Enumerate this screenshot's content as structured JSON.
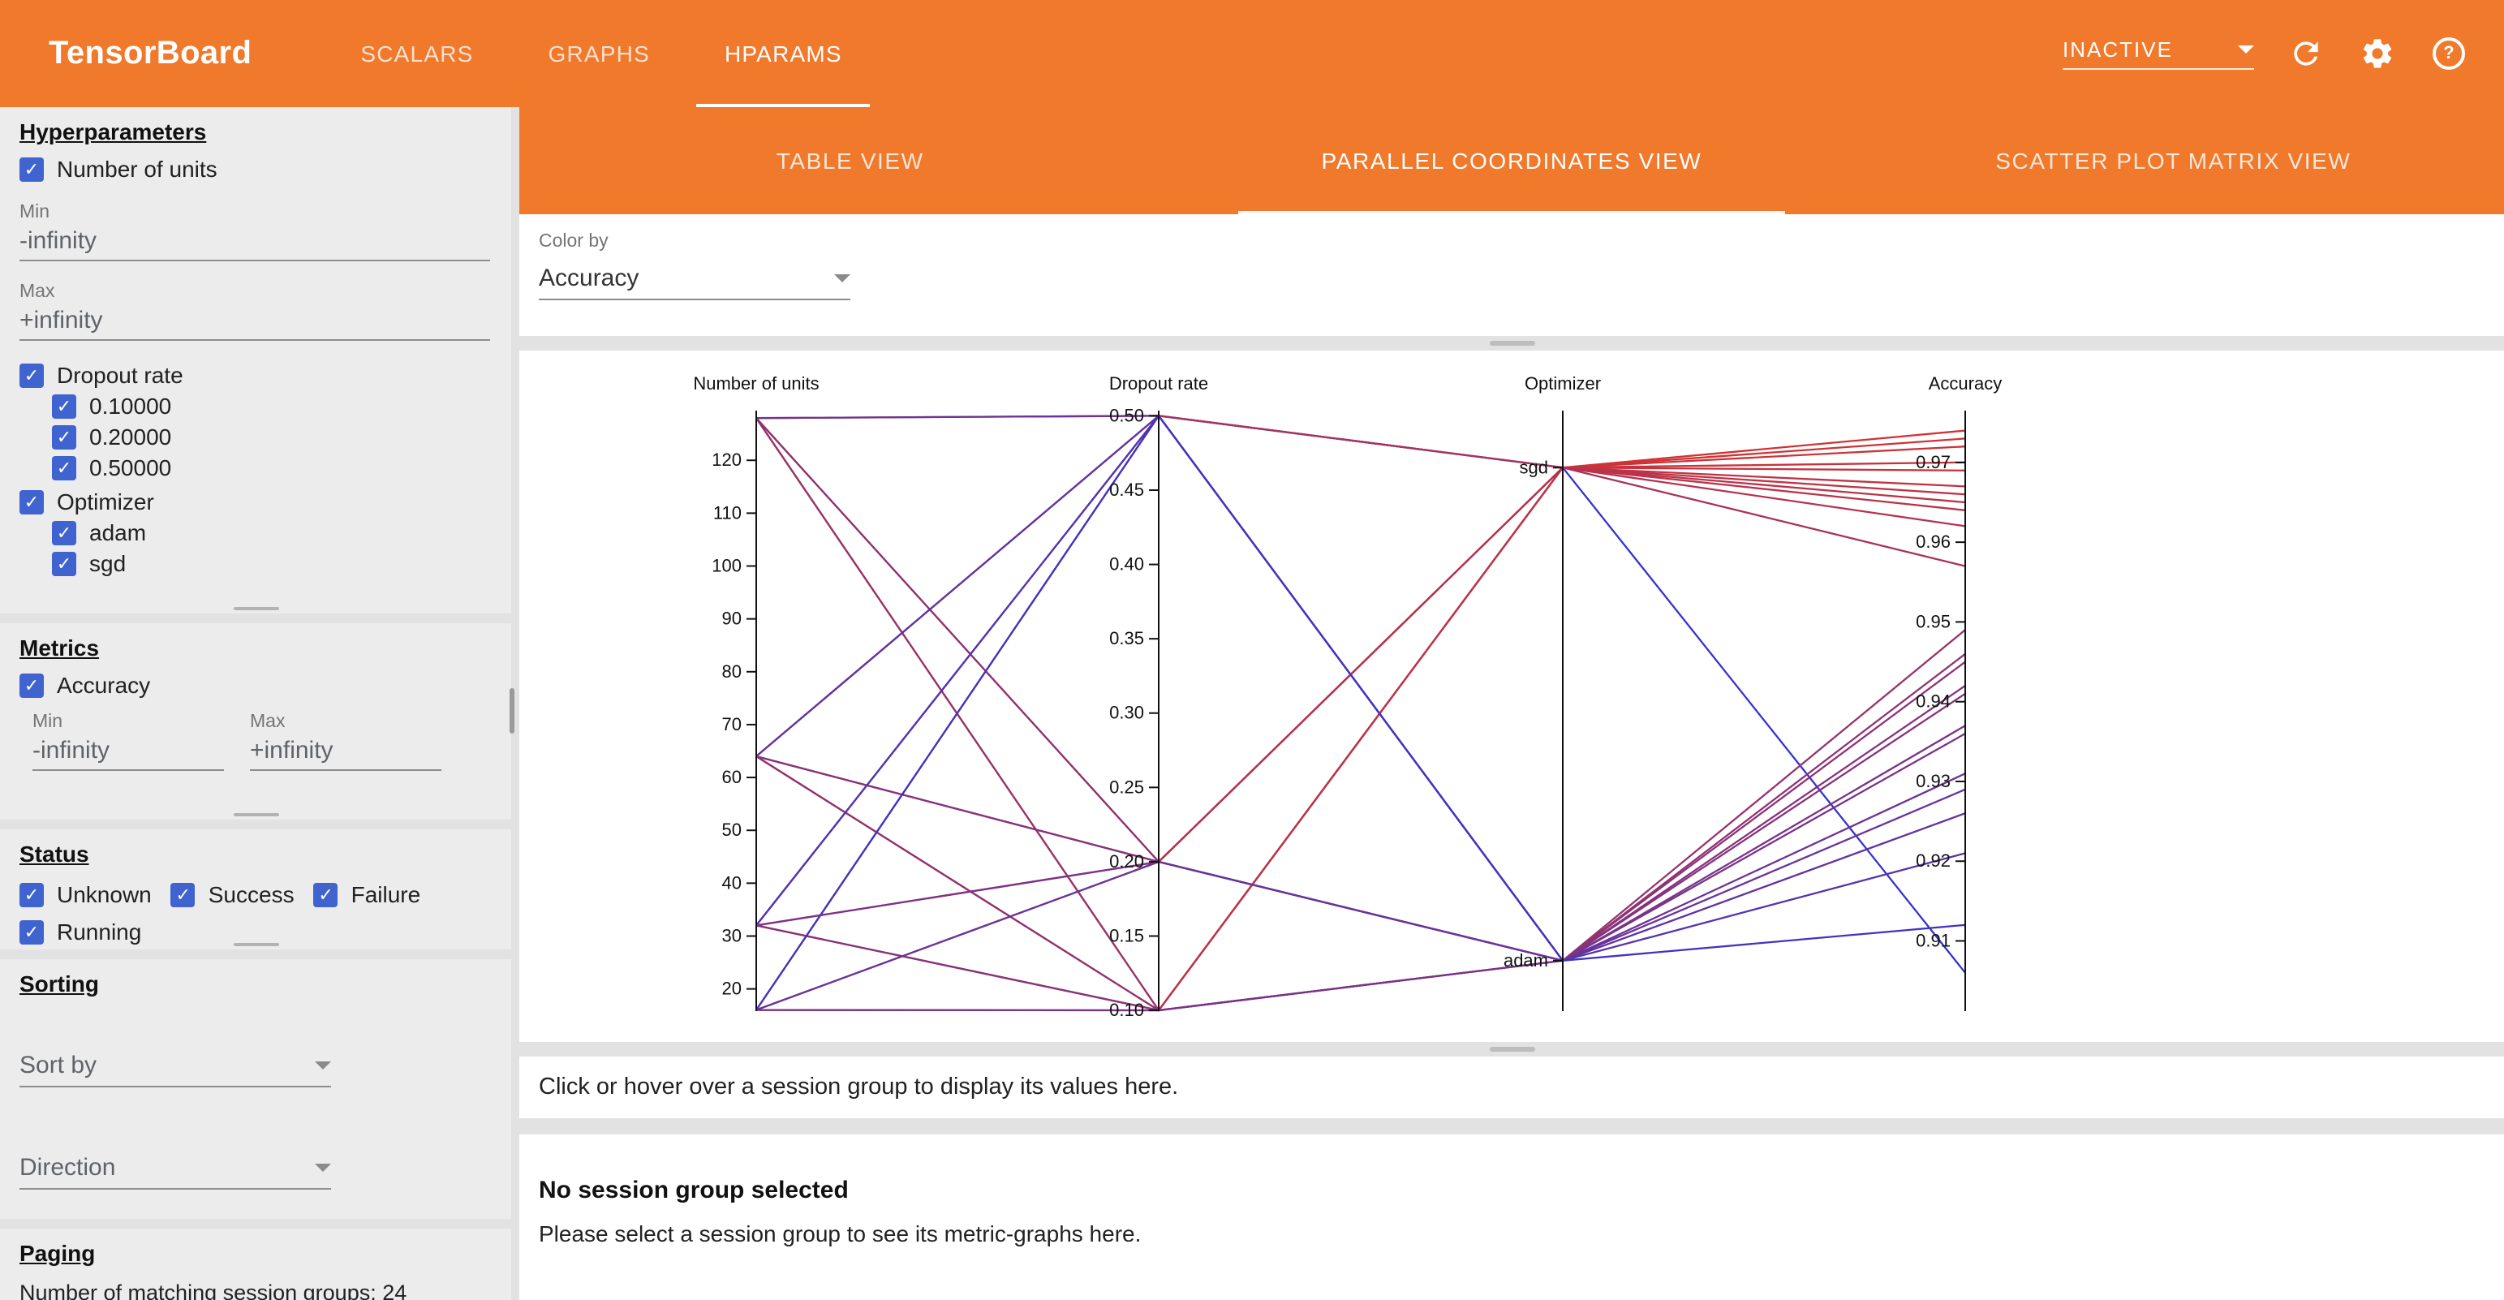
{
  "app": {
    "title": "TensorBoard"
  },
  "header": {
    "tabs": [
      "SCALARS",
      "GRAPHS",
      "HPARAMS"
    ],
    "active_tab": "HPARAMS",
    "run_status": "INACTIVE",
    "colors": {
      "toolbar": "#f0792b"
    }
  },
  "view_tabs": [
    "TABLE VIEW",
    "PARALLEL COORDINATES VIEW",
    "SCATTER PLOT MATRIX VIEW"
  ],
  "sidebar": {
    "hyperparameters": {
      "title": "Hyperparameters",
      "number_of_units": {
        "label": "Number of units",
        "checked": true,
        "min_label": "Min",
        "min_value": "-infinity",
        "max_label": "Max",
        "max_value": "+infinity"
      },
      "dropout": {
        "label": "Dropout rate",
        "checked": true,
        "options": [
          "0.10000",
          "0.20000",
          "0.50000"
        ]
      },
      "optimizer": {
        "label": "Optimizer",
        "checked": true,
        "options": [
          "adam",
          "sgd"
        ]
      }
    },
    "metrics": {
      "title": "Metrics",
      "accuracy": {
        "label": "Accuracy",
        "checked": true,
        "min_label": "Min",
        "min_value": "-infinity",
        "max_label": "Max",
        "max_value": "+infinity"
      }
    },
    "status": {
      "title": "Status",
      "options": [
        "Unknown",
        "Success",
        "Failure",
        "Running"
      ]
    },
    "sorting": {
      "title": "Sorting",
      "sort_by_label": "Sort by",
      "direction_label": "Direction"
    },
    "paging": {
      "title": "Paging",
      "summary": "Number of matching session groups: 24"
    }
  },
  "main": {
    "color_by_label": "Color by",
    "color_by_value": "Accuracy",
    "session_hint": "Click or hover over a session group to display its values here.",
    "no_selection_title": "No session group selected",
    "no_selection_message": "Please select a session group to see its metric-graphs here."
  },
  "chart_data": {
    "type": "parallel_coordinates",
    "color_by": "Accuracy",
    "color_scale": {
      "low_color": "#3333d0",
      "high_color": "#d03333",
      "domain": [
        0.906,
        0.974
      ]
    },
    "keys": [
      "number_of_units",
      "dropout_rate",
      "optimizer",
      "accuracy"
    ],
    "axes": [
      {
        "name": "Number of units",
        "type": "linear",
        "domain": [
          15.8,
          129.4
        ],
        "ticks": [
          {
            "v": 20,
            "label": "20"
          },
          {
            "v": 30,
            "label": "30"
          },
          {
            "v": 40,
            "label": "40"
          },
          {
            "v": 50,
            "label": "50"
          },
          {
            "v": 60,
            "label": "60"
          },
          {
            "v": 70,
            "label": "70"
          },
          {
            "v": 80,
            "label": "80"
          },
          {
            "v": 90,
            "label": "90"
          },
          {
            "v": 100,
            "label": "100"
          },
          {
            "v": 110,
            "label": "110"
          },
          {
            "v": 120,
            "label": "120"
          }
        ]
      },
      {
        "name": "Dropout rate",
        "type": "linear",
        "domain": [
          0.0995,
          0.5035
        ],
        "ticks": [
          {
            "v": 0.1,
            "label": "0.10"
          },
          {
            "v": 0.15,
            "label": "0.15"
          },
          {
            "v": 0.2,
            "label": "0.20"
          },
          {
            "v": 0.25,
            "label": "0.25"
          },
          {
            "v": 0.3,
            "label": "0.30"
          },
          {
            "v": 0.35,
            "label": "0.35"
          },
          {
            "v": 0.4,
            "label": "0.40"
          },
          {
            "v": 0.45,
            "label": "0.45"
          },
          {
            "v": 0.5,
            "label": "0.50"
          }
        ]
      },
      {
        "name": "Optimizer",
        "type": "categorical",
        "categories": [
          "adam",
          "sgd"
        ],
        "positions": [
          0.084,
          0.905
        ]
      },
      {
        "name": "Accuracy",
        "type": "linear",
        "domain": [
          0.9012,
          0.9765
        ],
        "ticks": [
          {
            "v": 0.91,
            "label": "0.91"
          },
          {
            "v": 0.92,
            "label": "0.92"
          },
          {
            "v": 0.93,
            "label": "0.93"
          },
          {
            "v": 0.94,
            "label": "0.94"
          },
          {
            "v": 0.95,
            "label": "0.95"
          },
          {
            "v": 0.96,
            "label": "0.96"
          },
          {
            "v": 0.97,
            "label": "0.97"
          }
        ]
      }
    ],
    "sessions": [
      {
        "values": [
          128,
          0.1,
          "sgd",
          0.974
        ]
      },
      {
        "values": [
          128,
          0.2,
          "sgd",
          0.972
        ]
      },
      {
        "values": [
          128,
          0.5,
          "sgd",
          0.967
        ]
      },
      {
        "values": [
          64,
          0.1,
          "sgd",
          0.973
        ]
      },
      {
        "values": [
          64,
          0.2,
          "sgd",
          0.97
        ]
      },
      {
        "values": [
          64,
          0.5,
          "sgd",
          0.964
        ]
      },
      {
        "values": [
          32,
          0.1,
          "sgd",
          0.969
        ]
      },
      {
        "values": [
          32,
          0.2,
          "sgd",
          0.966
        ]
      },
      {
        "values": [
          32,
          0.5,
          "sgd",
          0.906
        ]
      },
      {
        "values": [
          16,
          0.1,
          "sgd",
          0.965
        ]
      },
      {
        "values": [
          16,
          0.2,
          "sgd",
          0.962
        ]
      },
      {
        "values": [
          16,
          0.5,
          "sgd",
          0.957
        ]
      },
      {
        "values": [
          128,
          0.1,
          "adam",
          0.949
        ]
      },
      {
        "values": [
          128,
          0.2,
          "adam",
          0.945
        ]
      },
      {
        "values": [
          128,
          0.5,
          "adam",
          0.931
        ]
      },
      {
        "values": [
          64,
          0.1,
          "adam",
          0.946
        ]
      },
      {
        "values": [
          64,
          0.2,
          "adam",
          0.941
        ]
      },
      {
        "values": [
          64,
          0.5,
          "adam",
          0.926
        ]
      },
      {
        "values": [
          32,
          0.1,
          "adam",
          0.942
        ]
      },
      {
        "values": [
          32,
          0.2,
          "adam",
          0.937
        ]
      },
      {
        "values": [
          32,
          0.5,
          "adam",
          0.921
        ]
      },
      {
        "values": [
          16,
          0.1,
          "adam",
          0.936
        ]
      },
      {
        "values": [
          16,
          0.2,
          "adam",
          0.929
        ]
      },
      {
        "values": [
          16,
          0.5,
          "adam",
          0.912
        ]
      }
    ]
  }
}
